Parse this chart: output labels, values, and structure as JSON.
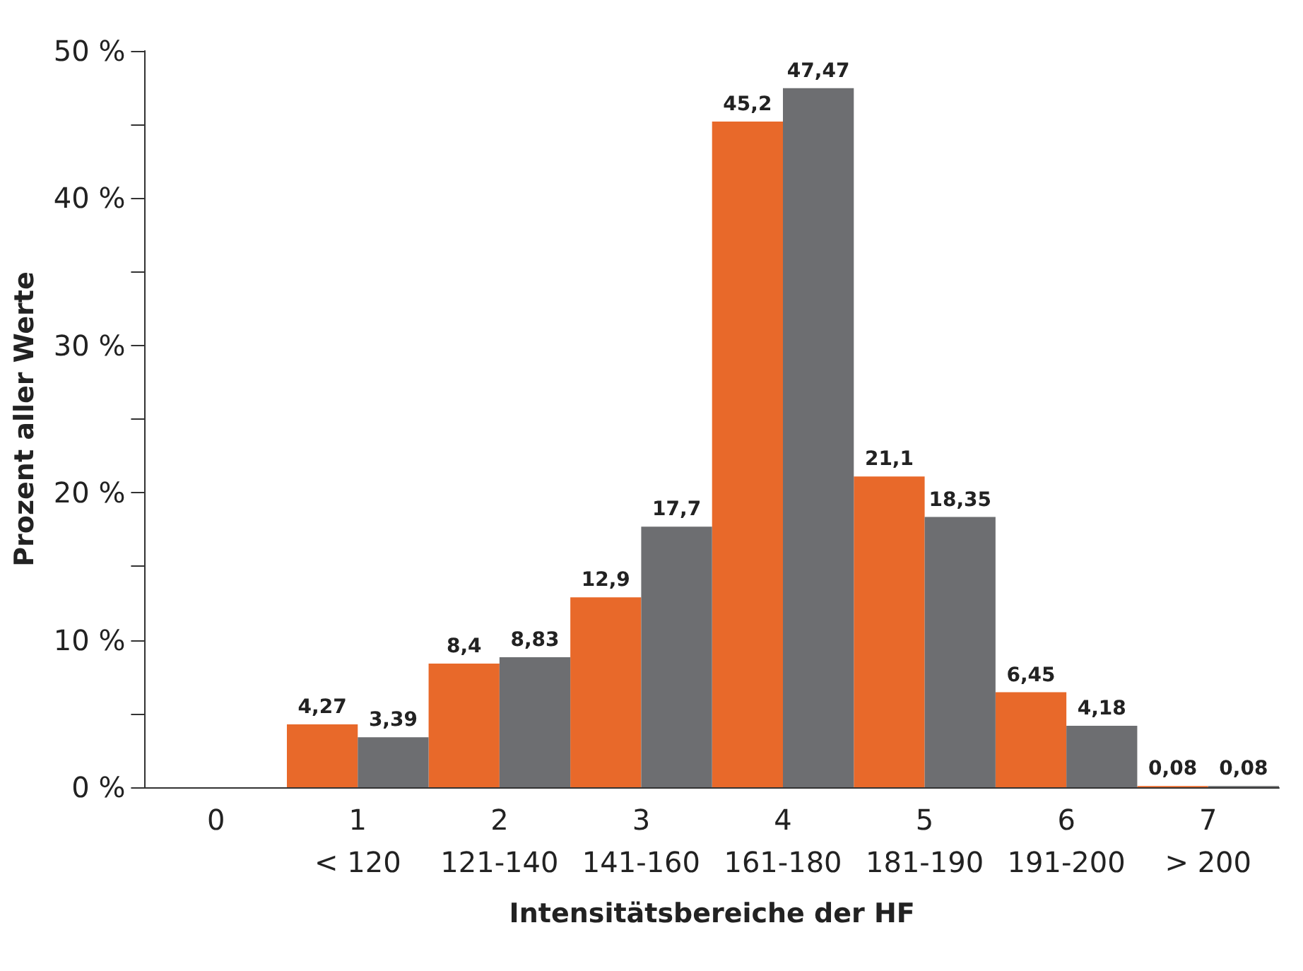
{
  "chart_data": {
    "type": "bar",
    "xlabel": "Intensitätsbereiche der HF",
    "ylabel": "Prozent aller Werte",
    "categories": [
      "0",
      "1\n< 120",
      "2\n121-140",
      "3\n141-160",
      "4\n161-180",
      "5\n181-190",
      "6\n191-200",
      "7\n> 200"
    ],
    "series": [
      {
        "color": "#e8692a",
        "values": [
          null,
          4.27,
          8.4,
          12.9,
          45.2,
          21.1,
          6.45,
          0.08
        ],
        "value_labels": [
          null,
          "4,27",
          "8,4",
          "12,9",
          "45,2",
          "21,1",
          "6,45",
          "0,08"
        ]
      },
      {
        "color": "#6d6e71",
        "values": [
          null,
          3.39,
          8.83,
          17.7,
          47.47,
          18.35,
          4.18,
          0.08
        ],
        "value_labels": [
          null,
          "3,39",
          "8,83",
          "17,7",
          "47,47",
          "18,35",
          "4,18",
          "0,08"
        ]
      }
    ],
    "ylim": [
      0,
      50
    ],
    "yticks": [
      {
        "value": 0,
        "label": "0 %"
      },
      {
        "value": 5,
        "label": null
      },
      {
        "value": 10,
        "label": "10 %"
      },
      {
        "value": 15,
        "label": null
      },
      {
        "value": 20,
        "label": "20 %"
      },
      {
        "value": 25,
        "label": null
      },
      {
        "value": 30,
        "label": "30 %"
      },
      {
        "value": 35,
        "label": null
      },
      {
        "value": 40,
        "label": "40 %"
      },
      {
        "value": 45,
        "label": null
      },
      {
        "value": 50,
        "label": "50 %"
      }
    ],
    "grid": false
  }
}
